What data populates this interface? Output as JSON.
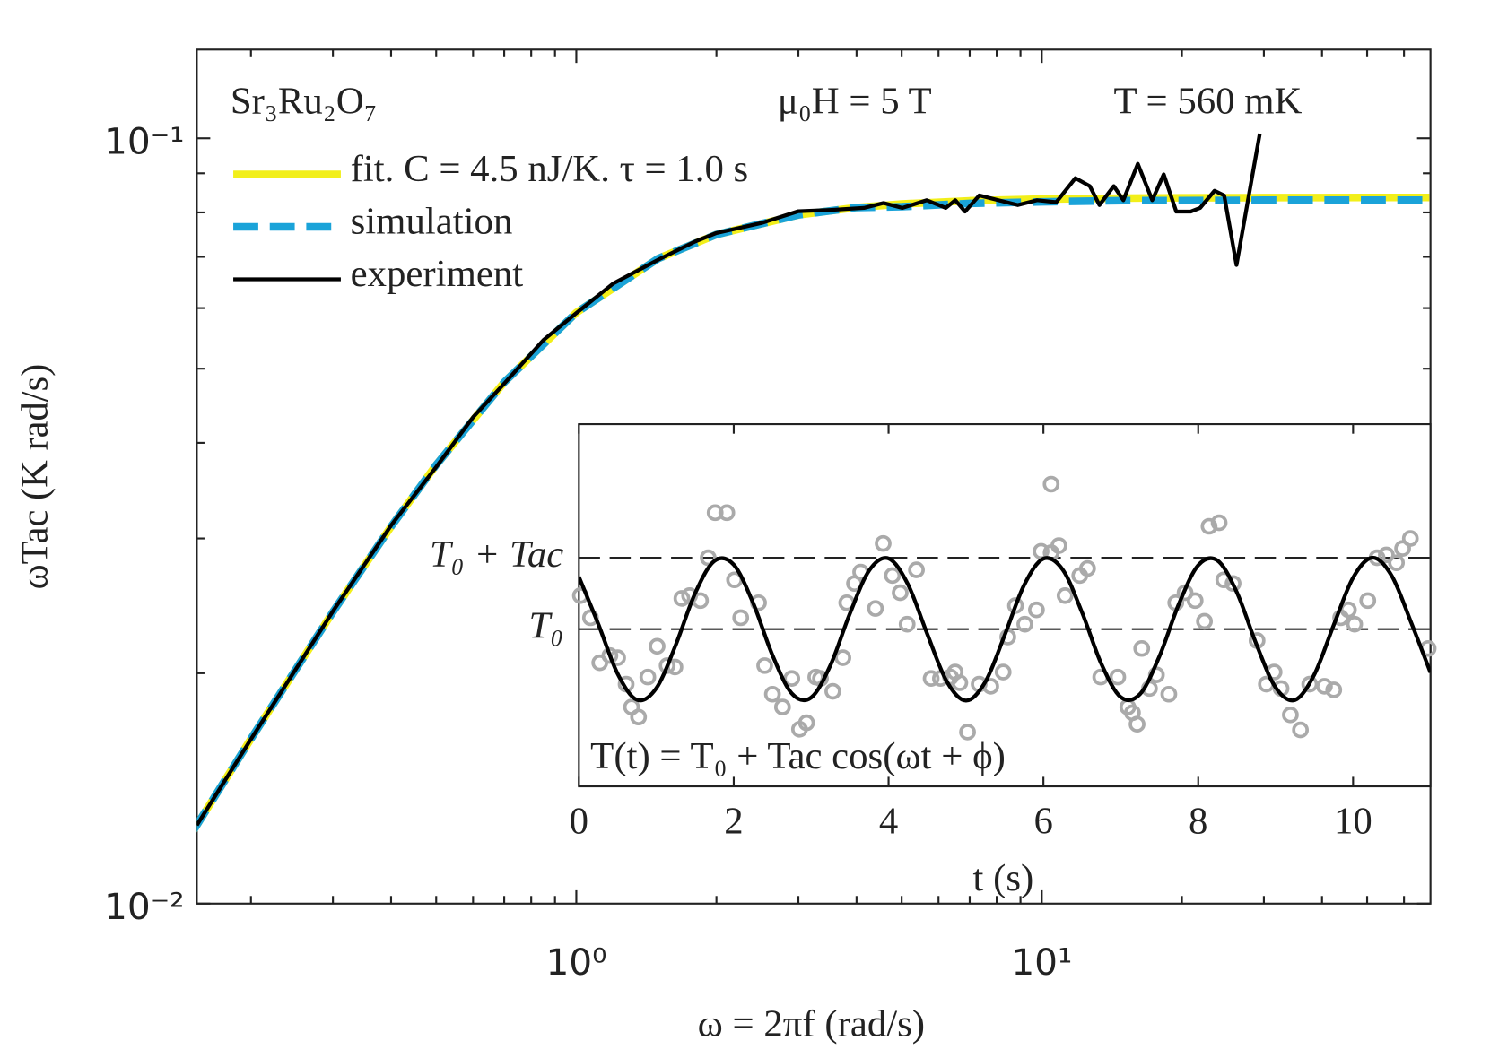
{
  "chart_data": [
    {
      "type": "line",
      "xlabel": "ω = 2πf (rad/s)",
      "ylabel": "ωTac (K rad/s)",
      "xscale": "log",
      "yscale": "log",
      "xlim": [
        0.153,
        68.4
      ],
      "ylim": [
        0.01,
        0.1306
      ],
      "xticks": [
        {
          "value": 1,
          "label": "10⁰"
        },
        {
          "value": 10,
          "label": "10¹"
        }
      ],
      "yticks": [
        {
          "value": 0.01,
          "label": "10⁻²"
        },
        {
          "value": 0.1,
          "label": "10⁻¹"
        }
      ],
      "xminorticks": [
        0.2,
        0.3,
        0.4,
        0.5,
        0.6,
        0.7,
        0.8,
        0.9,
        2,
        3,
        4,
        5,
        6,
        7,
        8,
        9,
        20,
        30,
        40,
        50,
        60
      ],
      "yminorticks": [
        0.02,
        0.03,
        0.04,
        0.05,
        0.06,
        0.07,
        0.08,
        0.09
      ],
      "legend": "upper left",
      "annotations": [
        "Sr₃Ru₂O₇",
        "μ₀H = 5 T",
        "T = 560 mK"
      ],
      "series": [
        {
          "name": "fit. C = 4.5 nJ/K. τ = 1.0 s",
          "color": "#f2ef1a",
          "style": "solid",
          "width": 8,
          "x": [
            0.15,
            0.2,
            0.3,
            0.4,
            0.5,
            0.7,
            1,
            1.5,
            2,
            3,
            4,
            5,
            7,
            10,
            15,
            20,
            30,
            40,
            68
          ],
          "values": [
            0.01242,
            0.01642,
            0.02405,
            0.03109,
            0.03743,
            0.048,
            0.05918,
            0.06965,
            0.07486,
            0.07941,
            0.0812,
            0.08207,
            0.08286,
            0.08328,
            0.08352,
            0.0836,
            0.08365,
            0.08367,
            0.0837
          ]
        },
        {
          "name": "simulation",
          "color": "#1aa3d9",
          "style": "dashed",
          "width": 8,
          "x": [
            0.15,
            0.2,
            0.3,
            0.4,
            0.5,
            0.7,
            1,
            1.5,
            2,
            3,
            4,
            5,
            7,
            10,
            15,
            20,
            30,
            40,
            68
          ],
          "values": [
            0.01242,
            0.01642,
            0.02405,
            0.03109,
            0.03743,
            0.048,
            0.05918,
            0.06965,
            0.07486,
            0.07941,
            0.0812,
            0.0814,
            0.0822,
            0.0826,
            0.0829,
            0.0829,
            0.083,
            0.083,
            0.083
          ]
        },
        {
          "name": "experiment",
          "color": "#000000",
          "style": "solid",
          "width": 4,
          "x": [
            0.153,
            0.2,
            0.3,
            0.4,
            0.5,
            0.6,
            0.7,
            0.85,
            1,
            1.2,
            1.5,
            1.8,
            2,
            2.5,
            3,
            3.5,
            4.15,
            4.57,
            5.02,
            5.66,
            6.22,
            6.52,
            6.84,
            7.34,
            8.07,
            8.88,
            9.77,
            10.74,
            11.81,
            12.68,
            13.3,
            14.28,
            14.97,
            16.08,
            17.27,
            18.28,
            19.45,
            20.89,
            21.89,
            23.5,
            24.65,
            26.2,
            29.4
          ],
          "values": [
            0.01266,
            0.0164,
            0.0241,
            0.0312,
            0.0372,
            0.0432,
            0.0478,
            0.0545,
            0.0591,
            0.0646,
            0.0694,
            0.0733,
            0.0752,
            0.0775,
            0.0803,
            0.0806,
            0.0811,
            0.0823,
            0.0811,
            0.083,
            0.0811,
            0.083,
            0.0802,
            0.0842,
            0.083,
            0.0818,
            0.083,
            0.0825,
            0.0887,
            0.0866,
            0.0818,
            0.0866,
            0.083,
            0.0926,
            0.083,
            0.0897,
            0.0802,
            0.0802,
            0.0811,
            0.0854,
            0.0842,
            0.0683,
            0.1014
          ]
        }
      ]
    },
    {
      "type": "scatter",
      "xlabel": "t (s)",
      "annotations": [
        "T(t) = T₀ + Tac cos(ωt + ϕ)"
      ],
      "xlim": [
        0,
        11
      ],
      "ylim": [
        -2.2,
        2.87
      ],
      "xticks": [
        0,
        2,
        4,
        6,
        8,
        10
      ],
      "yticks": [
        {
          "value": 0,
          "label": "T₀"
        },
        {
          "value": 1,
          "label": "T₀ + Tac"
        }
      ],
      "color": "#aaaaaa",
      "x": [
        0.02,
        0.15,
        0.27,
        0.4,
        0.5,
        0.61,
        0.68,
        0.77,
        0.89,
        1.01,
        1.14,
        1.24,
        1.33,
        1.43,
        1.57,
        1.67,
        1.76,
        1.91,
        2.01,
        2.09,
        2.32,
        2.4,
        2.5,
        2.63,
        2.75,
        2.85,
        2.94,
        3.06,
        3.12,
        3.28,
        3.41,
        3.46,
        3.56,
        3.64,
        3.83,
        3.93,
        4.05,
        4.15,
        4.24,
        4.36,
        4.55,
        4.67,
        4.8,
        4.86,
        4.92,
        5.02,
        5.17,
        5.32,
        5.48,
        5.54,
        5.64,
        5.76,
        5.91,
        5.97,
        6.1,
        6.2,
        6.28,
        6.47,
        6.57,
        6.1,
        6.74,
        6.96,
        7.09,
        7.15,
        7.21,
        7.27,
        7.37,
        7.46,
        7.62,
        7.71,
        7.83,
        7.96,
        8.08,
        8.14,
        8.27,
        8.33,
        8.45,
        8.76,
        8.88,
        8.98,
        9.07,
        9.19,
        9.32,
        9.44,
        9.63,
        9.75,
        9.84,
        9.94,
        10.02,
        10.19,
        10.31,
        10.43,
        10.56,
        10.64,
        10.74,
        10.97
      ],
      "values": [
        0.47,
        0.16,
        -0.47,
        -0.37,
        -0.4,
        -0.77,
        -1.09,
        -1.23,
        -0.67,
        -0.24,
        -0.51,
        -0.53,
        0.43,
        0.47,
        0.4,
        1.0,
        1.63,
        1.63,
        0.69,
        0.16,
        0.37,
        -0.51,
        -0.91,
        -1.09,
        -0.69,
        -1.4,
        -1.31,
        -0.67,
        -0.69,
        -0.87,
        -0.4,
        0.37,
        0.64,
        0.8,
        0.29,
        1.2,
        0.75,
        0.51,
        0.07,
        0.83,
        -0.69,
        -0.69,
        -0.67,
        -0.6,
        -0.75,
        -1.44,
        -0.77,
        -0.8,
        -0.6,
        -0.11,
        0.33,
        0.07,
        0.27,
        1.09,
        1.07,
        1.17,
        0.47,
        0.75,
        0.85,
        2.03,
        -0.67,
        -0.67,
        -1.09,
        -1.17,
        -1.33,
        -0.27,
        -0.83,
        -0.64,
        -0.91,
        0.37,
        0.51,
        0.4,
        0.11,
        1.44,
        1.49,
        0.69,
        0.64,
        -0.16,
        -0.77,
        -0.6,
        -0.83,
        -1.2,
        -1.41,
        -0.77,
        -0.8,
        -0.85,
        0.16,
        0.27,
        0.07,
        0.4,
        1.0,
        1.04,
        0.93,
        1.13,
        1.27,
        -0.27
      ],
      "fit": {
        "color": "#000000",
        "x": [
          0,
          0.25,
          0.5,
          0.75,
          1,
          1.25,
          1.5,
          1.75,
          2,
          2.25,
          2.5,
          2.75,
          3,
          3.25,
          3.5,
          3.75,
          4,
          4.25,
          4.5,
          4.75,
          5,
          5.25,
          5.5,
          5.75,
          6,
          6.25,
          6.5,
          6.75,
          7,
          7.25,
          7.5,
          7.75,
          8,
          8.25,
          8.5,
          8.75,
          9,
          9.25,
          9.5,
          9.75,
          10,
          10.25,
          10.5,
          10.75,
          11
        ],
        "values": [
          0.732,
          0.073,
          -0.624,
          -0.989,
          -0.826,
          -0.223,
          0.5,
          0.955,
          0.902,
          0.367,
          -0.363,
          -0.9,
          -0.957,
          -0.503,
          0.218,
          0.823,
          0.99,
          0.628,
          -0.068,
          -0.728,
          -1.0,
          -0.737,
          -0.083,
          0.615,
          0.987,
          0.832,
          0.232,
          -0.49,
          -0.952,
          -0.906,
          -0.376,
          0.353,
          0.895,
          0.96,
          0.513,
          -0.208,
          -0.817,
          -0.991,
          -0.634,
          0.058,
          0.721,
          1.0,
          0.746,
          0.094,
          -0.607
        ]
      }
    }
  ]
}
